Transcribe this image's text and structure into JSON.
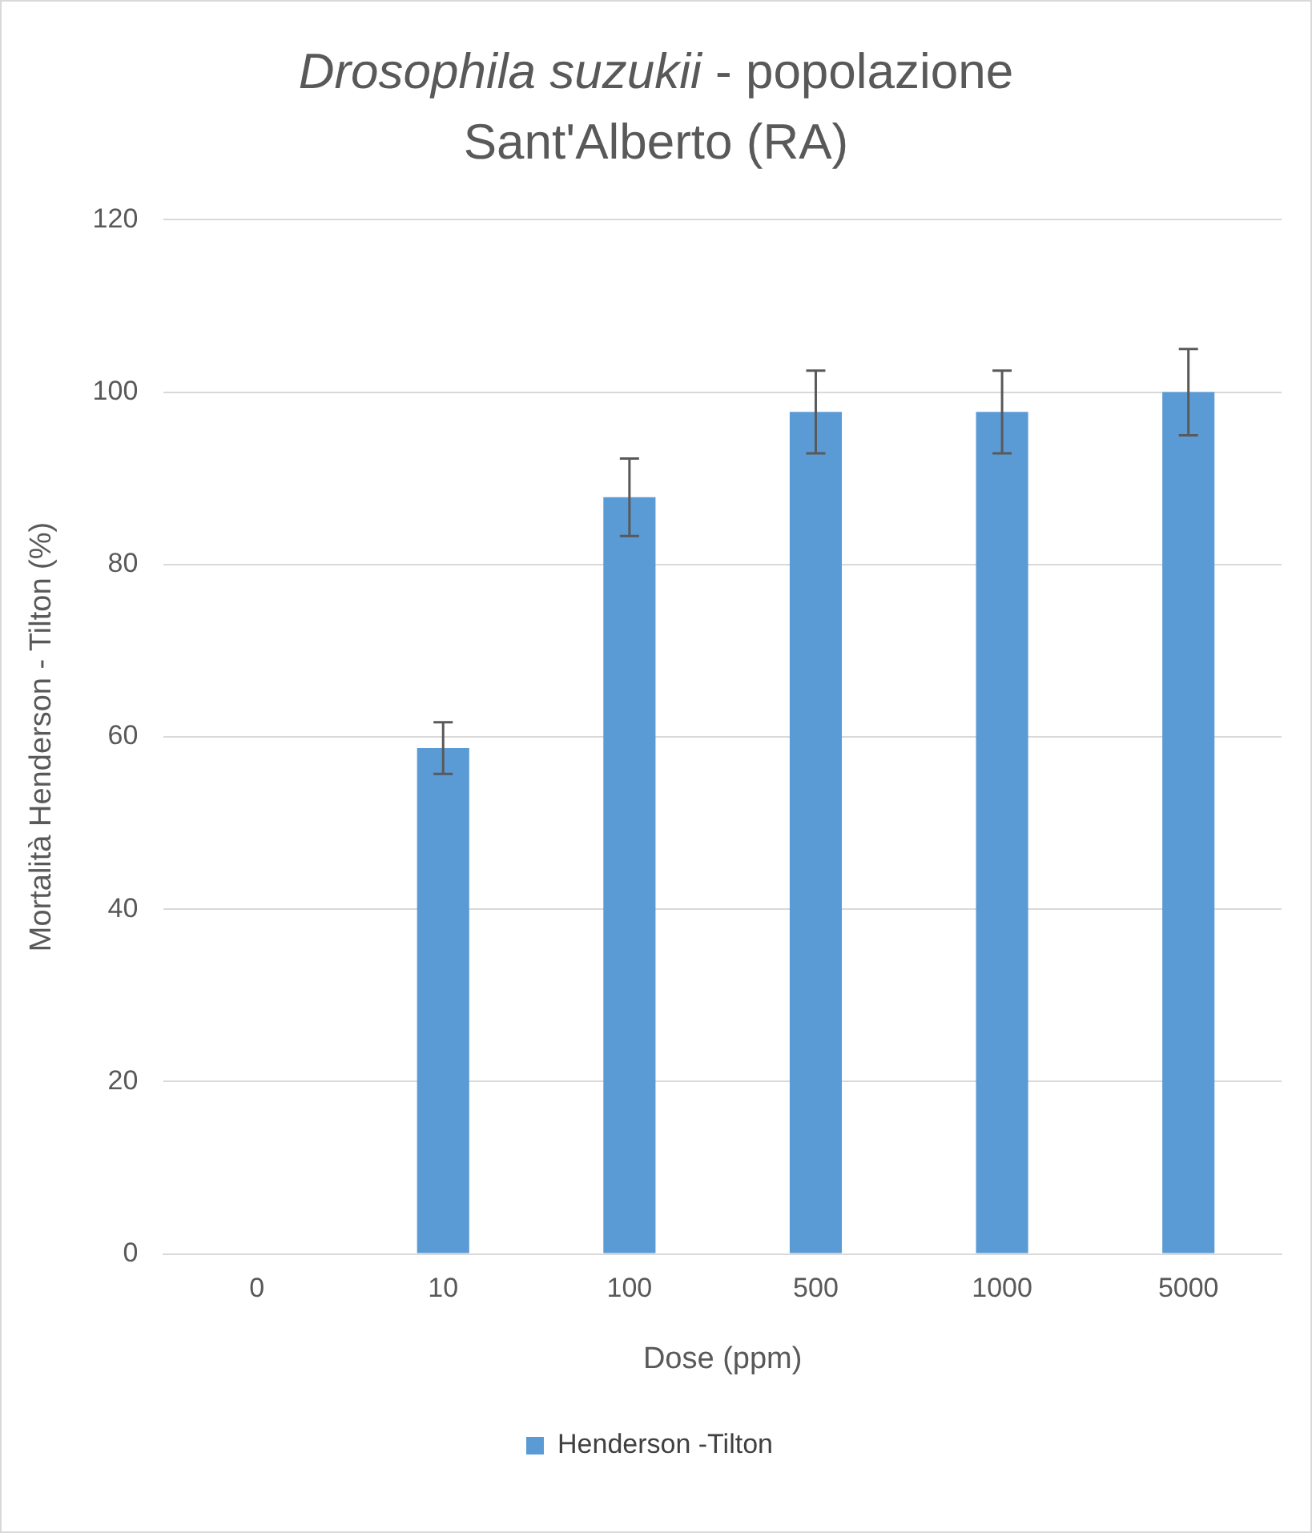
{
  "chart_data": {
    "type": "bar",
    "title": "Drosophila suzukii - popolazione Sant'Alberto (RA)",
    "xlabel": "Dose (ppm)",
    "ylabel": "Mortalità Henderson - Tilton (%)",
    "categories": [
      "0",
      "10",
      "100",
      "500",
      "1000",
      "5000"
    ],
    "series": [
      {
        "name": "Henderson -Tilton",
        "color": "#5b9bd5",
        "values": [
          0,
          58.7,
          87.8,
          97.7,
          97.7,
          100
        ],
        "errors": [
          null,
          3,
          4.5,
          4.8,
          4.8,
          5
        ]
      }
    ],
    "ylim": [
      0,
      120
    ],
    "yticks": [
      0,
      20,
      40,
      60,
      80,
      100,
      120
    ],
    "grid": "y",
    "legend": "bottom"
  }
}
